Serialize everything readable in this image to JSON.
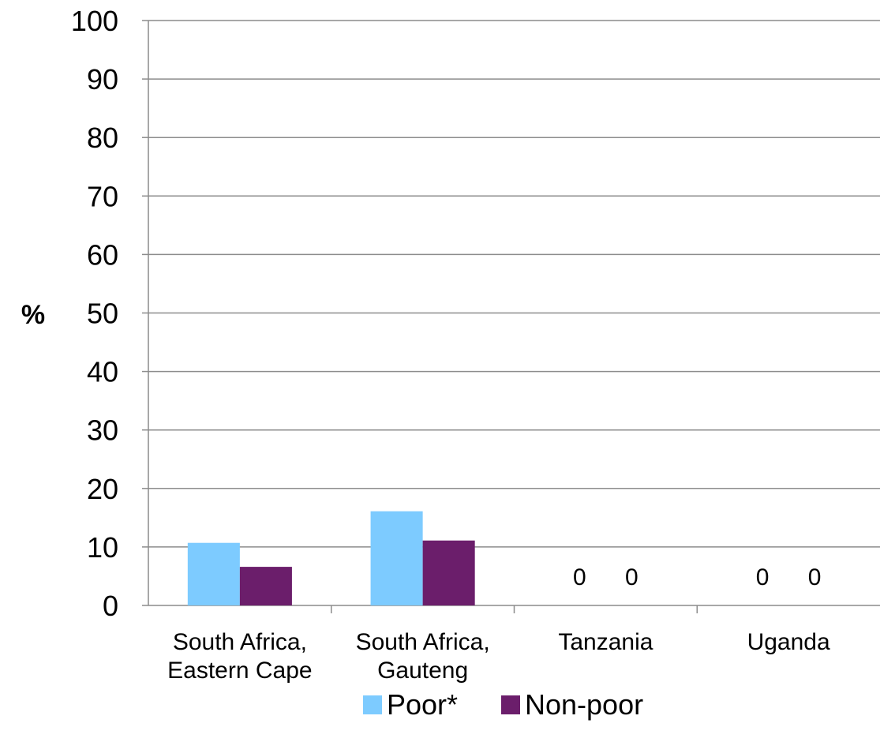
{
  "chart_data": {
    "type": "bar",
    "title": "",
    "xlabel": "",
    "ylabel": "%",
    "ylim": [
      0,
      100
    ],
    "yticks": [
      0,
      10,
      20,
      30,
      40,
      50,
      60,
      70,
      80,
      90,
      100
    ],
    "grid": true,
    "legend_position": "bottom",
    "categories": [
      [
        "South Africa,",
        "Eastern Cape"
      ],
      [
        "South Africa,",
        "Gauteng"
      ],
      [
        "Tanzania"
      ],
      [
        "Uganda"
      ]
    ],
    "series": [
      {
        "name": "Poor*",
        "color": "#7dcbff",
        "values": [
          10.7,
          16.1,
          0,
          0
        ]
      },
      {
        "name": "Non-poor",
        "color": "#6b1e6b",
        "values": [
          6.6,
          11.1,
          0,
          0
        ]
      }
    ],
    "data_labels": [
      {
        "category": 2,
        "series": 0,
        "text": "0"
      },
      {
        "category": 2,
        "series": 1,
        "text": "0"
      },
      {
        "category": 3,
        "series": 0,
        "text": "0"
      },
      {
        "category": 3,
        "series": 1,
        "text": "0"
      }
    ]
  }
}
